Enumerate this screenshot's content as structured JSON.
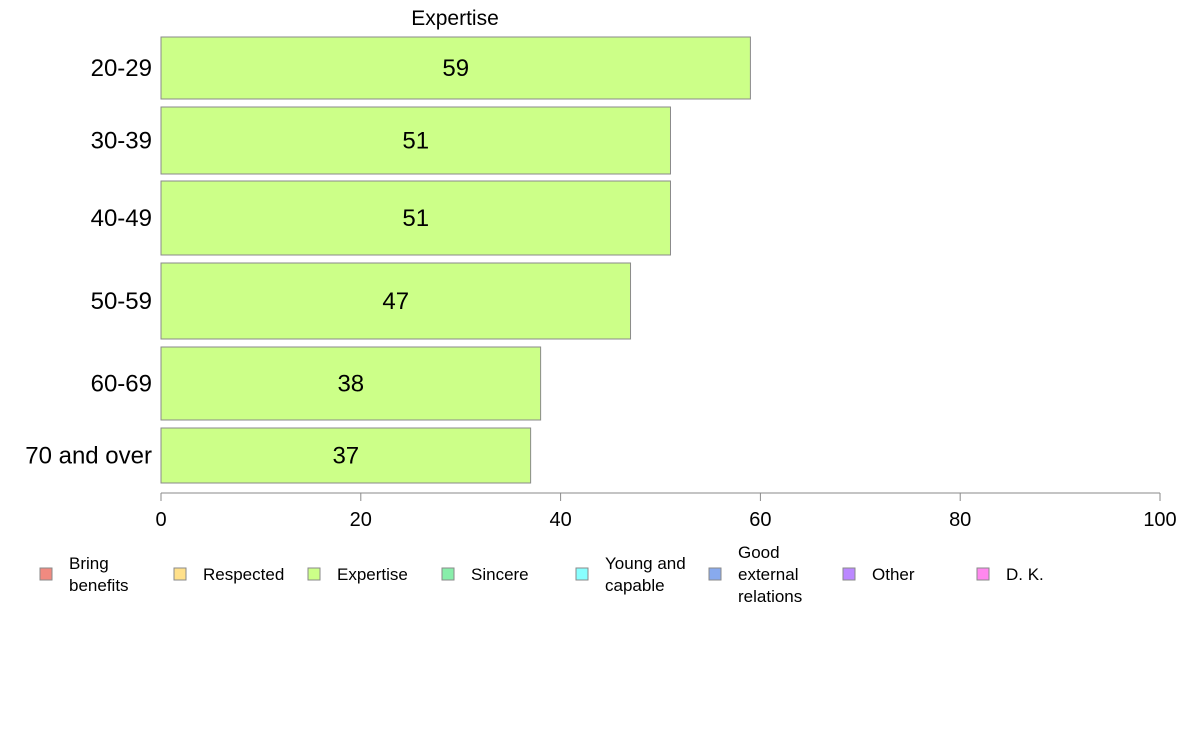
{
  "chart_data": {
    "type": "bar",
    "orientation": "horizontal",
    "title": "Expertise",
    "categories": [
      "20-29",
      "30-39",
      "40-49",
      "50-59",
      "60-69",
      "70 and over"
    ],
    "values": [
      59,
      51,
      51,
      47,
      38,
      37
    ],
    "bar_color": "#ccff88",
    "bar_border_color": "#8a8a8a",
    "xlim": [
      0,
      100
    ],
    "xticks": [
      0,
      20,
      40,
      60,
      80,
      100
    ],
    "grid": false,
    "legend_position": "bottom",
    "legend": [
      {
        "label": "Bring benefits",
        "lines": [
          "Bring",
          "benefits"
        ],
        "color": "#f08a80"
      },
      {
        "label": "Respected",
        "lines": [
          "Respected"
        ],
        "color": "#ffe08a"
      },
      {
        "label": "Expertise",
        "lines": [
          "Expertise"
        ],
        "color": "#ccff88"
      },
      {
        "label": "Sincere",
        "lines": [
          "Sincere"
        ],
        "color": "#88eeaa"
      },
      {
        "label": "Young and capable",
        "lines": [
          "Young and",
          "capable"
        ],
        "color": "#88ffff"
      },
      {
        "label": "Good external relations",
        "lines": [
          "Good",
          "external",
          "relations"
        ],
        "color": "#88aaee"
      },
      {
        "label": "Other",
        "lines": [
          "Other"
        ],
        "color": "#bb88ff"
      },
      {
        "label": "D. K.",
        "lines": [
          "D. K."
        ],
        "color": "#ff88ee"
      }
    ]
  }
}
